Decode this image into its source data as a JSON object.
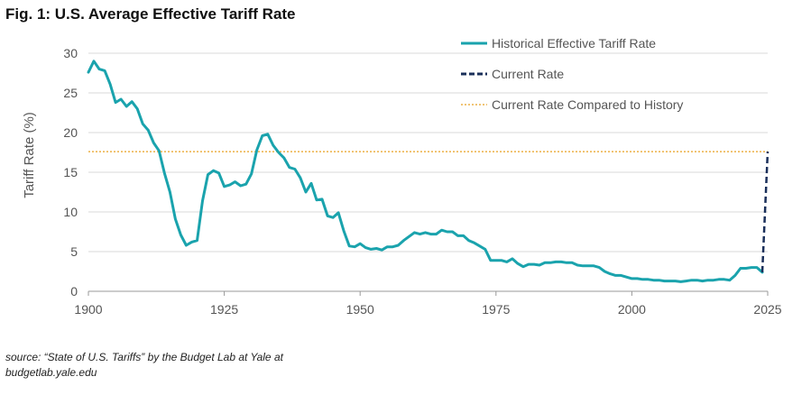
{
  "figure_title": "Fig. 1: U.S. Average Effective Tariff Rate",
  "source_line1": "source: “State of U.S. Tariffs” by the Budget Lab at Yale at",
  "source_line2": "budgetlab.yale.edu",
  "colors": {
    "historical": "#1aa3ad",
    "current": "#1a2f5a",
    "reference": "#e8a020",
    "grid": "#d9d9d9",
    "axis": "#999999"
  },
  "chart_data": {
    "type": "line",
    "title": "Fig. 1: U.S. Average Effective Tariff Rate",
    "xlabel": "",
    "ylabel": "Tariff Rate (%)",
    "xlim": [
      1900,
      2025
    ],
    "ylim": [
      0,
      30
    ],
    "x_ticks": [
      1900,
      1925,
      1950,
      1975,
      2000,
      2025
    ],
    "y_ticks": [
      0,
      5,
      10,
      15,
      20,
      25,
      30
    ],
    "grid": "horizontal",
    "legend_position": "top-right",
    "series": [
      {
        "name": "Historical Effective Tariff Rate",
        "style": "solid",
        "x": [
          1900,
          1901,
          1902,
          1903,
          1904,
          1905,
          1906,
          1907,
          1908,
          1909,
          1910,
          1911,
          1912,
          1913,
          1914,
          1915,
          1916,
          1917,
          1918,
          1919,
          1920,
          1921,
          1922,
          1923,
          1924,
          1925,
          1926,
          1927,
          1928,
          1929,
          1930,
          1931,
          1932,
          1933,
          1934,
          1935,
          1936,
          1937,
          1938,
          1939,
          1940,
          1941,
          1942,
          1943,
          1944,
          1945,
          1946,
          1947,
          1948,
          1949,
          1950,
          1951,
          1952,
          1953,
          1954,
          1955,
          1956,
          1957,
          1958,
          1959,
          1960,
          1961,
          1962,
          1963,
          1964,
          1965,
          1966,
          1967,
          1968,
          1969,
          1970,
          1971,
          1972,
          1973,
          1974,
          1975,
          1976,
          1977,
          1978,
          1979,
          1980,
          1981,
          1982,
          1983,
          1984,
          1985,
          1986,
          1987,
          1988,
          1989,
          1990,
          1991,
          1992,
          1993,
          1994,
          1995,
          1996,
          1997,
          1998,
          1999,
          2000,
          2001,
          2002,
          2003,
          2004,
          2005,
          2006,
          2007,
          2008,
          2009,
          2010,
          2011,
          2012,
          2013,
          2014,
          2015,
          2016,
          2017,
          2018,
          2019,
          2020,
          2021,
          2022,
          2023,
          2024
        ],
        "values": [
          27.6,
          29.0,
          28.0,
          27.8,
          26.1,
          23.8,
          24.2,
          23.3,
          23.9,
          23.0,
          21.1,
          20.3,
          18.7,
          17.7,
          14.9,
          12.5,
          9.1,
          7.1,
          5.8,
          6.2,
          6.4,
          11.4,
          14.7,
          15.2,
          14.9,
          13.2,
          13.4,
          13.8,
          13.3,
          13.5,
          14.8,
          17.8,
          19.6,
          19.8,
          18.4,
          17.5,
          16.8,
          15.6,
          15.4,
          14.3,
          12.5,
          13.6,
          11.5,
          11.6,
          9.5,
          9.3,
          9.9,
          7.6,
          5.7,
          5.6,
          6.0,
          5.5,
          5.3,
          5.4,
          5.2,
          5.6,
          5.6,
          5.8,
          6.4,
          6.9,
          7.4,
          7.2,
          7.4,
          7.2,
          7.2,
          7.7,
          7.5,
          7.5,
          7.0,
          7.0,
          6.4,
          6.1,
          5.7,
          5.3,
          3.9,
          3.9,
          3.9,
          3.7,
          4.1,
          3.5,
          3.1,
          3.4,
          3.4,
          3.3,
          3.6,
          3.6,
          3.7,
          3.7,
          3.6,
          3.6,
          3.3,
          3.2,
          3.2,
          3.2,
          3.0,
          2.5,
          2.2,
          2.0,
          2.0,
          1.8,
          1.6,
          1.6,
          1.5,
          1.5,
          1.4,
          1.4,
          1.3,
          1.3,
          1.3,
          1.2,
          1.3,
          1.4,
          1.4,
          1.3,
          1.4,
          1.4,
          1.5,
          1.5,
          1.4,
          2.0,
          2.9,
          2.9,
          3.0,
          3.0,
          2.4
        ]
      },
      {
        "name": "Current Rate",
        "style": "dashed",
        "x": [
          2024,
          2025
        ],
        "values": [
          2.4,
          17.6
        ]
      },
      {
        "name": "Current Rate Compared to History",
        "style": "dotted",
        "x": [
          1900,
          2025
        ],
        "values": [
          17.6,
          17.6
        ]
      }
    ]
  }
}
